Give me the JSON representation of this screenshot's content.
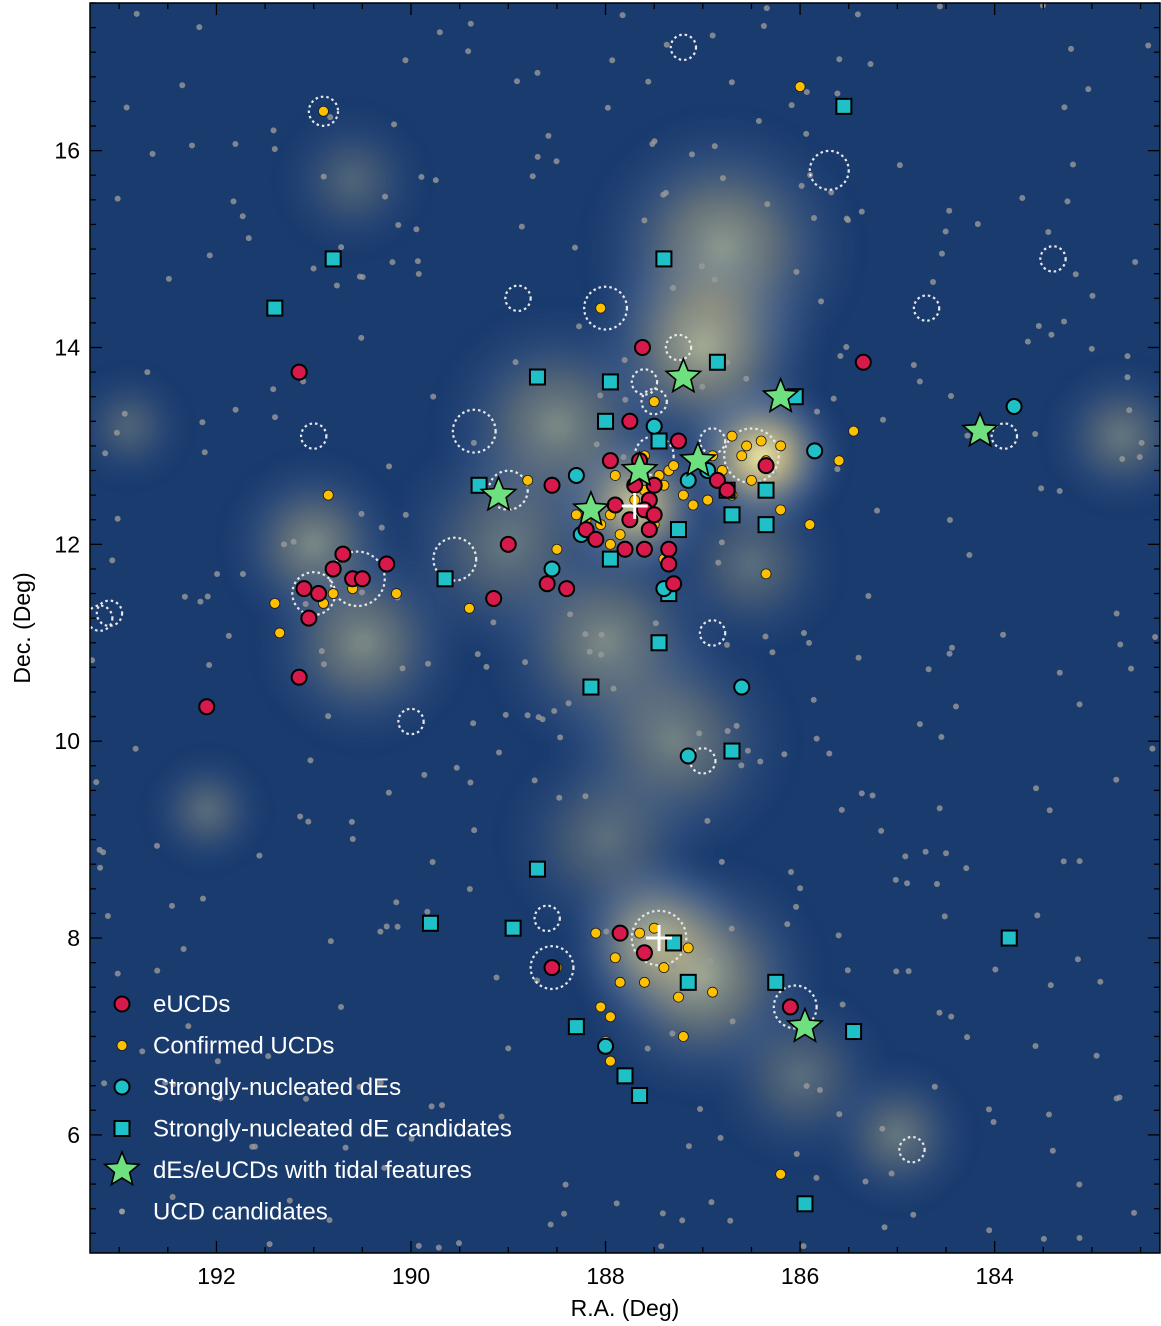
{
  "chart_data": {
    "type": "scatter",
    "xlabel": "R.A. (Deg)",
    "ylabel": "Dec. (Deg)",
    "xlim": [
      193.3,
      182.3
    ],
    "ylim": [
      4.8,
      17.5
    ],
    "x_ticks": [
      192,
      190,
      188,
      186,
      184
    ],
    "y_ticks": [
      6,
      8,
      10,
      12,
      14,
      16
    ],
    "grid": false,
    "legend_position": "bottom-left",
    "background": "smoothed UCD-candidate density map (blue low, yellow high)",
    "density_peaks": [
      {
        "x": 186.4,
        "y": 12.9,
        "strength": 1.0,
        "spread": 0.55
      },
      {
        "x": 187.7,
        "y": 12.4,
        "strength": 0.85,
        "spread": 0.55
      },
      {
        "x": 187.5,
        "y": 8.0,
        "strength": 0.75,
        "spread": 0.6
      },
      {
        "x": 187.0,
        "y": 7.6,
        "strength": 0.55,
        "spread": 0.8
      },
      {
        "x": 186.8,
        "y": 15.0,
        "strength": 0.55,
        "spread": 0.9
      },
      {
        "x": 187.0,
        "y": 14.0,
        "strength": 0.6,
        "spread": 0.8
      },
      {
        "x": 188.5,
        "y": 13.2,
        "strength": 0.45,
        "spread": 0.8
      },
      {
        "x": 189.0,
        "y": 12.0,
        "strength": 0.35,
        "spread": 0.8
      },
      {
        "x": 191.0,
        "y": 12.0,
        "strength": 0.45,
        "spread": 0.6
      },
      {
        "x": 190.5,
        "y": 11.0,
        "strength": 0.45,
        "spread": 0.7
      },
      {
        "x": 188.0,
        "y": 11.0,
        "strength": 0.45,
        "spread": 0.8
      },
      {
        "x": 187.3,
        "y": 10.0,
        "strength": 0.4,
        "spread": 0.8
      },
      {
        "x": 185.0,
        "y": 6.0,
        "strength": 0.35,
        "spread": 0.5
      },
      {
        "x": 182.7,
        "y": 13.1,
        "strength": 0.35,
        "spread": 0.5
      },
      {
        "x": 192.1,
        "y": 9.3,
        "strength": 0.3,
        "spread": 0.4
      },
      {
        "x": 192.9,
        "y": 13.2,
        "strength": 0.25,
        "spread": 0.4
      },
      {
        "x": 190.6,
        "y": 15.7,
        "strength": 0.25,
        "spread": 0.5
      },
      {
        "x": 186.5,
        "y": 11.8,
        "strength": 0.3,
        "spread": 0.6
      },
      {
        "x": 188.0,
        "y": 9.0,
        "strength": 0.3,
        "spread": 0.7
      },
      {
        "x": 186.0,
        "y": 6.6,
        "strength": 0.3,
        "spread": 0.6
      }
    ],
    "centers": [
      {
        "x": 187.7,
        "y": 12.39
      },
      {
        "x": 187.45,
        "y": 8.0
      }
    ],
    "circles": [
      {
        "x": 190.9,
        "y": 16.4,
        "r": 0.15
      },
      {
        "x": 187.2,
        "y": 17.05,
        "r": 0.13
      },
      {
        "x": 185.7,
        "y": 15.8,
        "r": 0.2
      },
      {
        "x": 183.4,
        "y": 14.9,
        "r": 0.13
      },
      {
        "x": 184.7,
        "y": 14.4,
        "r": 0.13
      },
      {
        "x": 188.0,
        "y": 14.4,
        "r": 0.22
      },
      {
        "x": 188.9,
        "y": 14.5,
        "r": 0.13
      },
      {
        "x": 187.25,
        "y": 14.0,
        "r": 0.13
      },
      {
        "x": 187.6,
        "y": 13.65,
        "r": 0.13
      },
      {
        "x": 187.5,
        "y": 13.45,
        "r": 0.13
      },
      {
        "x": 189.35,
        "y": 13.15,
        "r": 0.22
      },
      {
        "x": 191.0,
        "y": 13.1,
        "r": 0.13
      },
      {
        "x": 186.5,
        "y": 12.9,
        "r": 0.28
      },
      {
        "x": 186.9,
        "y": 13.05,
        "r": 0.13
      },
      {
        "x": 183.9,
        "y": 13.1,
        "r": 0.13
      },
      {
        "x": 187.5,
        "y": 12.9,
        "r": 0.2
      },
      {
        "x": 189.0,
        "y": 12.55,
        "r": 0.2
      },
      {
        "x": 189.55,
        "y": 11.85,
        "r": 0.22
      },
      {
        "x": 191.0,
        "y": 11.5,
        "r": 0.22
      },
      {
        "x": 190.55,
        "y": 11.65,
        "r": 0.28
      },
      {
        "x": 193.2,
        "y": 11.25,
        "r": 0.13
      },
      {
        "x": 193.1,
        "y": 11.3,
        "r": 0.13
      },
      {
        "x": 186.9,
        "y": 11.1,
        "r": 0.13
      },
      {
        "x": 190.0,
        "y": 10.2,
        "r": 0.13
      },
      {
        "x": 187.0,
        "y": 9.8,
        "r": 0.13
      },
      {
        "x": 188.6,
        "y": 8.2,
        "r": 0.13
      },
      {
        "x": 187.45,
        "y": 8.0,
        "r": 0.28
      },
      {
        "x": 188.55,
        "y": 7.7,
        "r": 0.22
      },
      {
        "x": 186.05,
        "y": 7.3,
        "r": 0.22
      },
      {
        "x": 184.85,
        "y": 5.85,
        "r": 0.13
      }
    ],
    "series": [
      {
        "name": "UCD candidates",
        "marker": "small-circle",
        "color": "#9a9a9a",
        "generated_count": 380
      },
      {
        "name": "Confirmed UCDs",
        "marker": "circle",
        "color": "#ffc000",
        "points": [
          [
            190.9,
            16.4
          ],
          [
            186.0,
            16.65
          ],
          [
            188.05,
            14.4
          ],
          [
            187.5,
            13.45
          ],
          [
            186.1,
            13.5
          ],
          [
            185.45,
            13.15
          ],
          [
            185.6,
            12.85
          ],
          [
            186.55,
            13.0
          ],
          [
            186.7,
            13.1
          ],
          [
            186.4,
            13.05
          ],
          [
            186.2,
            13.0
          ],
          [
            186.35,
            12.85
          ],
          [
            186.6,
            12.9
          ],
          [
            186.8,
            12.75
          ],
          [
            186.5,
            12.65
          ],
          [
            186.9,
            12.9
          ],
          [
            187.6,
            12.9
          ],
          [
            187.35,
            12.75
          ],
          [
            187.4,
            12.6
          ],
          [
            187.2,
            12.5
          ],
          [
            187.55,
            12.3
          ],
          [
            187.75,
            12.25
          ],
          [
            187.85,
            12.1
          ],
          [
            187.95,
            12.3
          ],
          [
            188.05,
            12.2
          ],
          [
            187.7,
            12.45
          ],
          [
            187.6,
            12.55
          ],
          [
            187.9,
            12.7
          ],
          [
            187.45,
            12.7
          ],
          [
            187.3,
            12.8
          ],
          [
            187.65,
            12.75
          ],
          [
            188.2,
            12.25
          ],
          [
            188.3,
            12.3
          ],
          [
            187.95,
            12.0
          ],
          [
            187.5,
            12.2
          ],
          [
            186.7,
            12.5
          ],
          [
            186.2,
            12.35
          ],
          [
            185.9,
            12.2
          ],
          [
            186.95,
            12.45
          ],
          [
            187.1,
            12.4
          ],
          [
            187.6,
            11.95
          ],
          [
            187.4,
            11.85
          ],
          [
            188.5,
            11.95
          ],
          [
            188.8,
            12.65
          ],
          [
            189.4,
            11.35
          ],
          [
            190.9,
            11.4
          ],
          [
            190.8,
            11.5
          ],
          [
            190.6,
            11.55
          ],
          [
            190.15,
            11.5
          ],
          [
            191.4,
            11.4
          ],
          [
            191.35,
            11.1
          ],
          [
            190.85,
            12.5
          ],
          [
            186.35,
            11.7
          ],
          [
            187.9,
            7.8
          ],
          [
            187.65,
            8.05
          ],
          [
            187.5,
            8.1
          ],
          [
            187.3,
            7.95
          ],
          [
            187.6,
            7.55
          ],
          [
            187.25,
            7.4
          ],
          [
            186.9,
            7.45
          ],
          [
            187.4,
            7.7
          ],
          [
            187.15,
            7.9
          ],
          [
            188.1,
            8.05
          ],
          [
            187.85,
            7.55
          ],
          [
            187.95,
            7.2
          ],
          [
            188.0,
            6.95
          ],
          [
            187.95,
            6.75
          ],
          [
            188.05,
            7.3
          ],
          [
            188.5,
            7.7
          ],
          [
            186.2,
            5.6
          ],
          [
            187.2,
            7.0
          ]
        ]
      },
      {
        "name": "eUCDs",
        "marker": "circle",
        "color": "#d7194b",
        "points": [
          [
            187.62,
            14.0
          ],
          [
            185.35,
            13.85
          ],
          [
            191.15,
            13.75
          ],
          [
            187.75,
            13.25
          ],
          [
            187.25,
            13.05
          ],
          [
            186.35,
            12.8
          ],
          [
            186.85,
            12.65
          ],
          [
            186.75,
            12.55
          ],
          [
            187.95,
            12.85
          ],
          [
            187.65,
            12.85
          ],
          [
            187.5,
            12.6
          ],
          [
            187.7,
            12.6
          ],
          [
            187.9,
            12.4
          ],
          [
            187.55,
            12.45
          ],
          [
            187.6,
            12.35
          ],
          [
            187.5,
            12.3
          ],
          [
            187.75,
            12.25
          ],
          [
            188.55,
            12.6
          ],
          [
            187.55,
            12.15
          ],
          [
            188.2,
            12.15
          ],
          [
            188.1,
            12.05
          ],
          [
            187.8,
            11.95
          ],
          [
            187.6,
            11.95
          ],
          [
            187.35,
            11.95
          ],
          [
            187.35,
            11.8
          ],
          [
            187.3,
            11.6
          ],
          [
            189.0,
            12.0
          ],
          [
            188.6,
            11.6
          ],
          [
            188.4,
            11.55
          ],
          [
            189.15,
            11.45
          ],
          [
            190.7,
            11.9
          ],
          [
            190.8,
            11.75
          ],
          [
            191.1,
            11.55
          ],
          [
            190.95,
            11.5
          ],
          [
            190.6,
            11.65
          ],
          [
            190.5,
            11.65
          ],
          [
            190.25,
            11.8
          ],
          [
            191.05,
            11.25
          ],
          [
            191.15,
            10.65
          ],
          [
            192.1,
            10.35
          ],
          [
            188.55,
            7.7
          ],
          [
            187.85,
            8.05
          ],
          [
            187.6,
            7.85
          ],
          [
            186.1,
            7.3
          ]
        ]
      },
      {
        "name": "Strongly-nucleated dEs",
        "marker": "circle",
        "color": "#1fc0c8",
        "points": [
          [
            183.8,
            13.4
          ],
          [
            185.85,
            12.95
          ],
          [
            187.5,
            13.2
          ],
          [
            187.15,
            12.65
          ],
          [
            186.95,
            12.75
          ],
          [
            188.3,
            12.7
          ],
          [
            188.25,
            12.1
          ],
          [
            188.55,
            11.75
          ],
          [
            187.4,
            11.55
          ],
          [
            186.6,
            10.55
          ],
          [
            187.15,
            9.85
          ],
          [
            188.0,
            6.9
          ]
        ]
      },
      {
        "name": "Strongly-nucleated dE candidates",
        "marker": "square",
        "color": "#1fc0c8",
        "points": [
          [
            185.55,
            16.45
          ],
          [
            190.8,
            14.9
          ],
          [
            187.4,
            14.9
          ],
          [
            191.4,
            14.4
          ],
          [
            186.85,
            13.85
          ],
          [
            188.7,
            13.7
          ],
          [
            187.95,
            13.65
          ],
          [
            186.05,
            13.5
          ],
          [
            188.0,
            13.25
          ],
          [
            187.45,
            13.05
          ],
          [
            186.75,
            12.55
          ],
          [
            186.35,
            12.55
          ],
          [
            189.3,
            12.6
          ],
          [
            186.7,
            12.3
          ],
          [
            186.35,
            12.2
          ],
          [
            187.25,
            12.15
          ],
          [
            187.95,
            11.85
          ],
          [
            189.65,
            11.65
          ],
          [
            187.35,
            11.5
          ],
          [
            187.45,
            11.0
          ],
          [
            188.15,
            10.55
          ],
          [
            186.7,
            9.9
          ],
          [
            188.7,
            8.7
          ],
          [
            189.8,
            8.15
          ],
          [
            188.95,
            8.1
          ],
          [
            187.3,
            7.95
          ],
          [
            183.85,
            8.0
          ],
          [
            187.15,
            7.55
          ],
          [
            186.25,
            7.55
          ],
          [
            188.3,
            7.1
          ],
          [
            185.45,
            7.05
          ],
          [
            187.8,
            6.6
          ],
          [
            187.65,
            6.4
          ],
          [
            185.95,
            5.3
          ]
        ]
      },
      {
        "name": "dEs/eUCDs with tidal features",
        "marker": "star",
        "color": "#6fe07f",
        "points": [
          [
            187.2,
            13.7
          ],
          [
            186.2,
            13.5
          ],
          [
            184.15,
            13.15
          ],
          [
            187.05,
            12.85
          ],
          [
            187.65,
            12.75
          ],
          [
            189.1,
            12.5
          ],
          [
            188.15,
            12.35
          ],
          [
            185.95,
            7.1
          ]
        ]
      }
    ]
  }
}
